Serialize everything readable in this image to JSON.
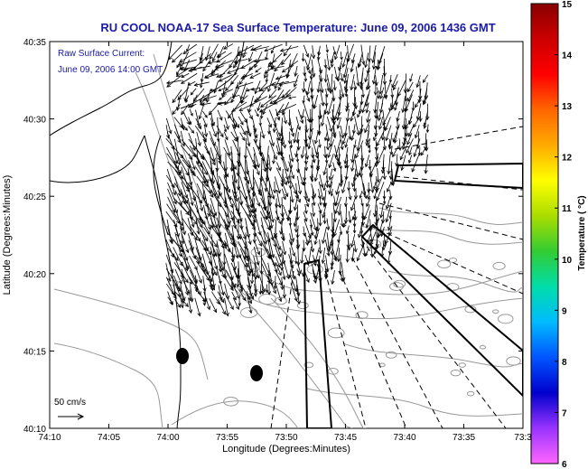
{
  "title": "RU COOL  NOAA-17  Sea Surface Temperature:  June 09, 2006 1436 GMT",
  "annotation": {
    "line1": "Raw Surface Current:",
    "line2": "June 09, 2006 14:00 GMT"
  },
  "x_axis": {
    "label": "Longitude (Degrees:Minutes)",
    "ticks": [
      "74:10",
      "74:05",
      "74:00",
      "73:55",
      "73:50",
      "73:45",
      "73:40",
      "73:35",
      "73:3"
    ]
  },
  "y_axis": {
    "label": "Latitude (Degrees:Minutes)",
    "ticks": [
      "40:35",
      "40:30",
      "40:25",
      "40:20",
      "40:15",
      "40:10"
    ]
  },
  "colorbar": {
    "label": "Temperature ( °C)",
    "ticks": [
      "15",
      "14",
      "13",
      "12",
      "11",
      "10",
      "9",
      "8",
      "7",
      "6"
    ],
    "min": 6,
    "max": 15,
    "colors": [
      "#ff66ff",
      "#9933ff",
      "#0000cc",
      "#0055ff",
      "#00bbff",
      "#00ddaa",
      "#33cc33",
      "#aadd00",
      "#ffff00",
      "#ffaa00",
      "#ff6600",
      "#ff0000",
      "#cc0000",
      "#880000"
    ]
  },
  "scale_vector": {
    "label": "50 cm/s"
  },
  "colors": {
    "title": "#1a1aa6",
    "contour": "#999999",
    "coast": "#000000"
  }
}
